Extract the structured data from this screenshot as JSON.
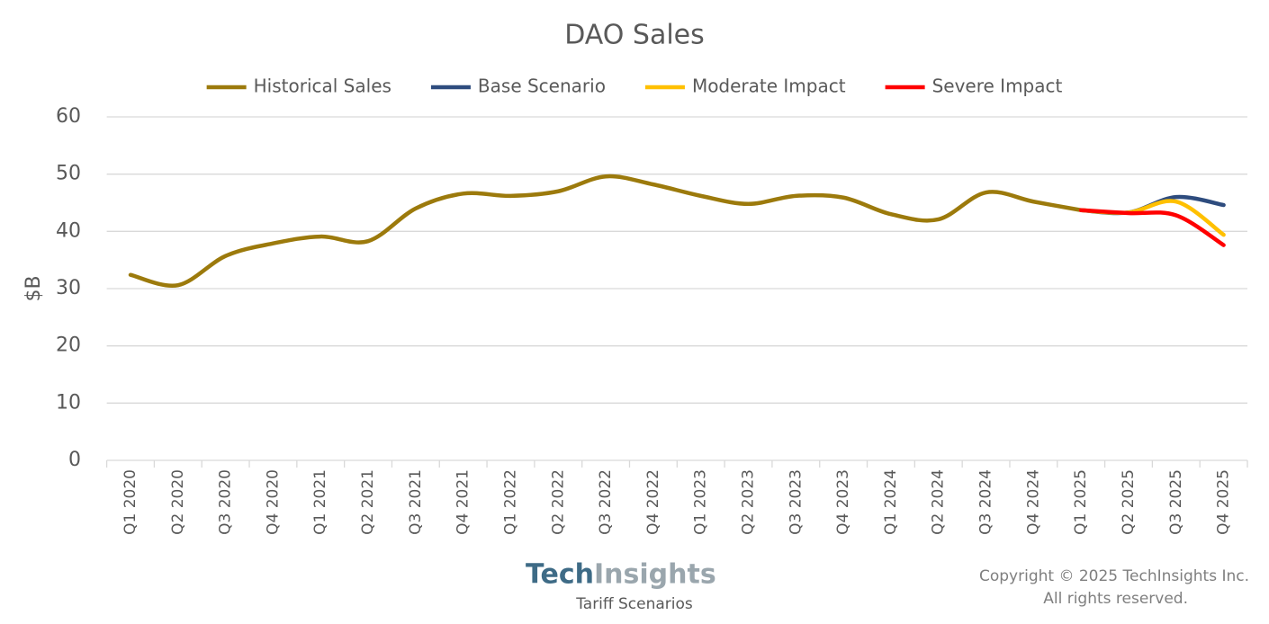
{
  "chart_data": {
    "type": "line",
    "title": "DAO Sales",
    "y_label": "$B",
    "categories": [
      "Q1 2020",
      "Q2 2020",
      "Q3 2020",
      "Q4 2020",
      "Q1 2021",
      "Q2 2021",
      "Q3 2021",
      "Q4 2021",
      "Q1 2022",
      "Q2 2022",
      "Q3 2022",
      "Q4 2022",
      "Q1 2023",
      "Q2 2023",
      "Q3 2023",
      "Q4 2023",
      "Q1 2024",
      "Q2 2024",
      "Q3 2024",
      "Q4 2024",
      "Q1 2025",
      "Q2 2025",
      "Q3 2025",
      "Q4 2025"
    ],
    "series": [
      {
        "name": "Historical Sales",
        "color": "#9c7a0c",
        "values": [
          32.4,
          30.6,
          35.7,
          37.9,
          39.1,
          38.3,
          44.0,
          46.6,
          46.2,
          47.0,
          49.6,
          48.2,
          46.2,
          44.8,
          46.2,
          45.9,
          43.0,
          42.1,
          46.8,
          45.2,
          43.7,
          null,
          null,
          null
        ]
      },
      {
        "name": "Base Scenario",
        "color": "#2e4c7e",
        "values": [
          null,
          null,
          null,
          null,
          null,
          null,
          null,
          null,
          null,
          null,
          null,
          null,
          null,
          null,
          null,
          null,
          null,
          null,
          null,
          null,
          43.7,
          43.3,
          46.0,
          44.6
        ]
      },
      {
        "name": "Moderate Impact",
        "color": "#ffc000",
        "values": [
          null,
          null,
          null,
          null,
          null,
          null,
          null,
          null,
          null,
          null,
          null,
          null,
          null,
          null,
          null,
          null,
          null,
          null,
          null,
          null,
          43.7,
          43.3,
          45.2,
          39.4
        ]
      },
      {
        "name": "Severe Impact",
        "color": "#ff0000",
        "values": [
          null,
          null,
          null,
          null,
          null,
          null,
          null,
          null,
          null,
          null,
          null,
          null,
          null,
          null,
          null,
          null,
          null,
          null,
          null,
          null,
          43.7,
          43.2,
          42.8,
          37.6
        ]
      }
    ],
    "ylim": [
      0,
      60
    ],
    "yticks": [
      0,
      10,
      20,
      30,
      40,
      50,
      60
    ],
    "grid": true,
    "legend": "top",
    "smooth": true
  },
  "footer": {
    "logo_tech": "Tech",
    "logo_insights": "Insights",
    "caption": "Tariff Scenarios",
    "copyright": [
      "Copyright © 2025 TechInsights Inc.",
      "All rights reserved."
    ]
  }
}
